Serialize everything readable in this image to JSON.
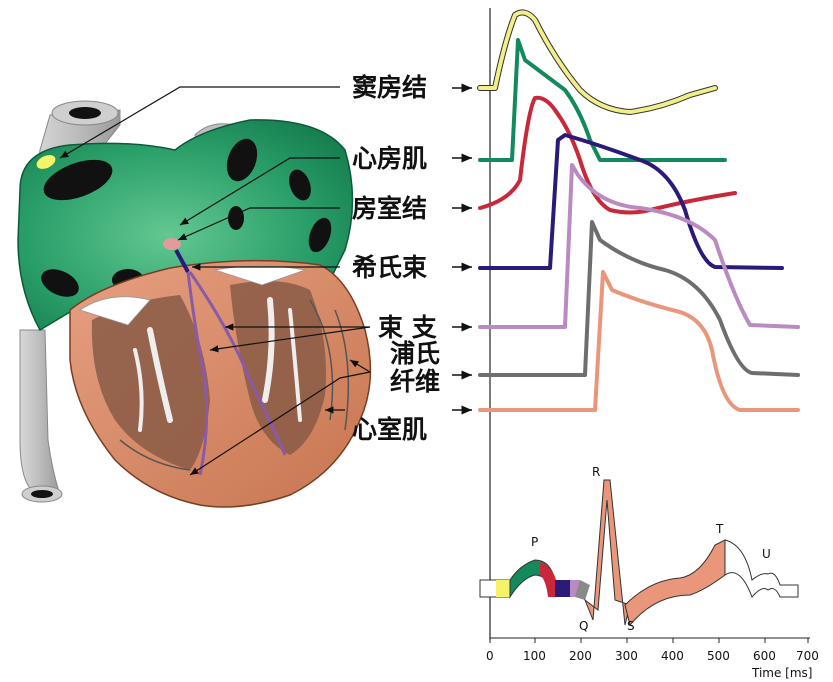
{
  "labels": {
    "sa_node": "窦房结",
    "atrial_muscle": "心房肌",
    "av_node": "房室结",
    "his_bundle": "希氏束",
    "bundle_branch": "束 支",
    "purkinje_1": "浦氏",
    "purkinje_2": "纤维",
    "ventricular_muscle": "心室肌"
  },
  "ecg": {
    "waves": [
      "P",
      "Q",
      "R",
      "S",
      "T",
      "U"
    ],
    "ticks": [
      "0",
      "100",
      "200",
      "300",
      "400",
      "500",
      "600",
      "700"
    ],
    "axis_label": "Time [ms]"
  },
  "colors": {
    "sa_node": "#f2ee8a",
    "atrial_muscle": "#138a5c",
    "av_node": "#c8283a",
    "his_bundle": "#2c1a78",
    "bundle_branch": "#b98bc0",
    "purkinje": "#6e6e6e",
    "ventricular_muscle": "#e9967a"
  }
}
